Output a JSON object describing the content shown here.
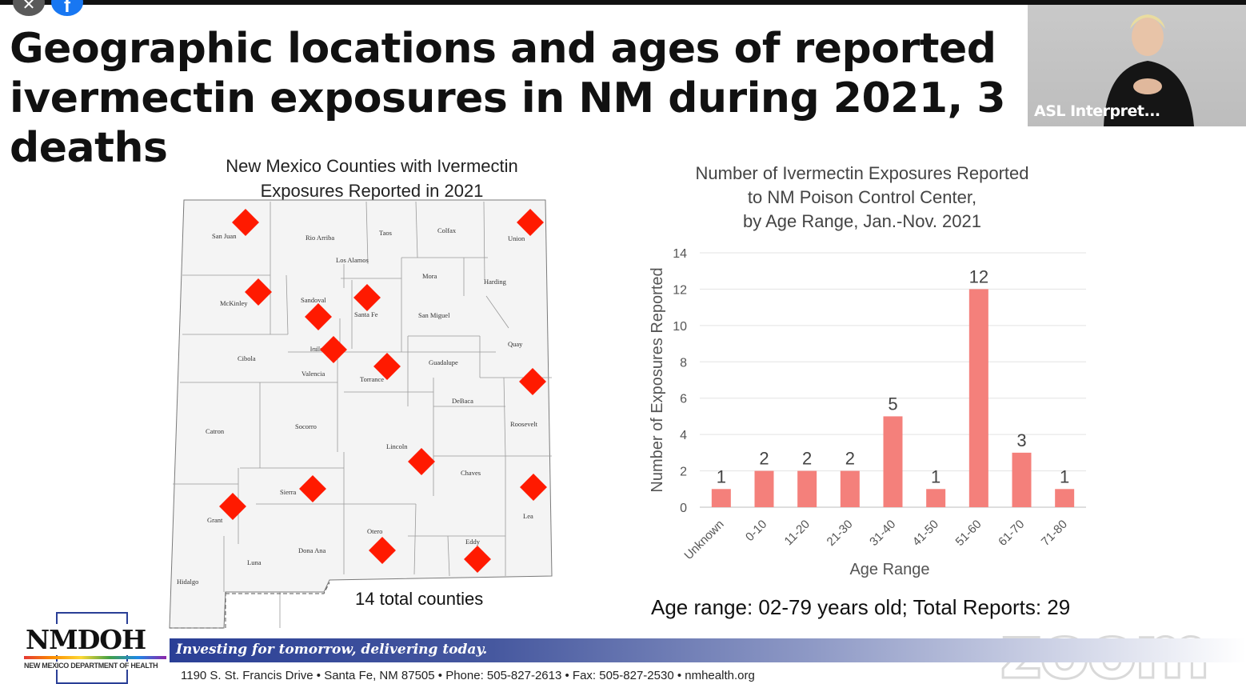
{
  "window": {
    "close_glyph": "✕",
    "facebook_glyph": "f"
  },
  "slide": {
    "title_line1": "Geographic locations and ages of reported",
    "title_line2": "ivermectin exposures in NM during 2021, 3 deaths"
  },
  "video": {
    "asl_label": "ASL Interpret..."
  },
  "map": {
    "title_line1": "New Mexico Counties with Ivermectin",
    "title_line2": "Exposures Reported in 2021",
    "total_label": "14 total counties",
    "marker_color": "#ff1a00",
    "counties": [
      {
        "name": "San Juan",
        "marked": true
      },
      {
        "name": "Rio Arriba",
        "marked": false
      },
      {
        "name": "Taos",
        "marked": false
      },
      {
        "name": "Colfax",
        "marked": false
      },
      {
        "name": "Union",
        "marked": true
      },
      {
        "name": "Los Alamos",
        "marked": false
      },
      {
        "name": "Mora",
        "marked": false
      },
      {
        "name": "Harding",
        "marked": false
      },
      {
        "name": "McKinley",
        "marked": true
      },
      {
        "name": "Sandoval",
        "marked": true
      },
      {
        "name": "Santa Fe",
        "marked": true
      },
      {
        "name": "San Miguel",
        "marked": false
      },
      {
        "name": "Bernalillo",
        "marked": true
      },
      {
        "name": "Quay",
        "marked": false
      },
      {
        "name": "Cibola",
        "marked": false
      },
      {
        "name": "Valencia",
        "marked": false
      },
      {
        "name": "Torrance",
        "marked": true
      },
      {
        "name": "Guadalupe",
        "marked": false
      },
      {
        "name": "Curry",
        "marked": true
      },
      {
        "name": "DeBaca",
        "marked": false
      },
      {
        "name": "Catron",
        "marked": false
      },
      {
        "name": "Socorro",
        "marked": false
      },
      {
        "name": "Roosevelt",
        "marked": false
      },
      {
        "name": "Lincoln",
        "marked": true
      },
      {
        "name": "Chaves",
        "marked": false
      },
      {
        "name": "Sierra",
        "marked": true
      },
      {
        "name": "Grant",
        "marked": true
      },
      {
        "name": "Lea",
        "marked": true
      },
      {
        "name": "Otero",
        "marked": true
      },
      {
        "name": "Eddy",
        "marked": true
      },
      {
        "name": "Dona Ana",
        "marked": false
      },
      {
        "name": "Luna",
        "marked": false
      },
      {
        "name": "Hidalgo",
        "marked": false
      }
    ]
  },
  "chart_title": {
    "line1": "Number of Ivermectin Exposures Reported",
    "line2": "to NM Poison Control Center,",
    "line3": "by Age Range, Jan.-Nov. 2021"
  },
  "chart_data": {
    "type": "bar",
    "title": "Number of Ivermectin Exposures Reported to NM Poison Control Center, by Age Range, Jan.-Nov. 2021",
    "categories": [
      "Unknown",
      "0-10",
      "11-20",
      "21-30",
      "31-40",
      "41-50",
      "51-60",
      "61-70",
      "71-80"
    ],
    "values": [
      1,
      2,
      2,
      2,
      5,
      1,
      12,
      3,
      1
    ],
    "xlabel": "Age Range",
    "ylabel": "Number of Exposures Reported",
    "ylim": [
      0,
      14
    ],
    "yticks": [
      0,
      2,
      4,
      6,
      8,
      10,
      12,
      14
    ],
    "grid": true,
    "bar_color": "#f4807b"
  },
  "summary": {
    "age_range_text": "Age range: 02-79 years old; ",
    "total_reports_text": "Total Reports: 29"
  },
  "watermark": {
    "zoom": "zoom"
  },
  "footer": {
    "logo": "NMDOH",
    "logo_sub": "NEW MEXICO DEPARTMENT OF HEALTH",
    "tagline": "Investing for tomorrow, delivering today.",
    "address": "1190 S. St. Francis Drive • Santa Fe, NM 87505 • Phone: 505-827-2613 • Fax: 505-827-2530 • nmhealth.org"
  }
}
